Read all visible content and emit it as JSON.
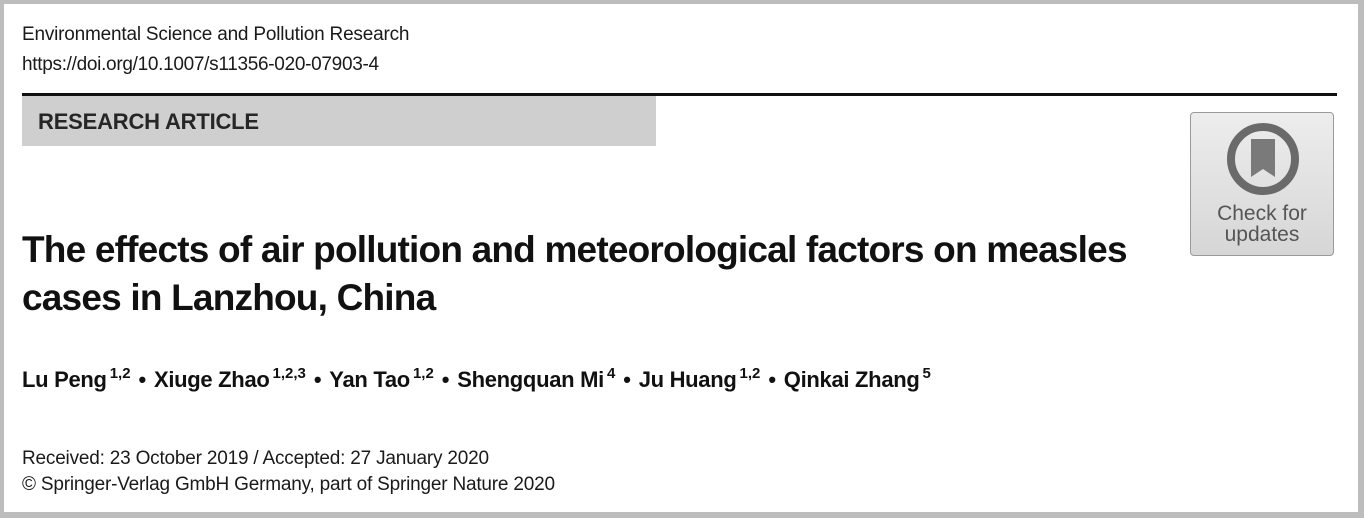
{
  "header": {
    "journal": "Environmental Science and Pollution Research",
    "doi": "https://doi.org/10.1007/s11356-020-07903-4"
  },
  "banner": {
    "label": "RESEARCH ARTICLE"
  },
  "badge": {
    "line1": "Check for",
    "line2": "updates"
  },
  "article": {
    "title": "The effects of air pollution and meteorological factors on measles cases in Lanzhou, China"
  },
  "authors": [
    {
      "name": "Lu Peng",
      "aff": "1,2"
    },
    {
      "name": "Xiuge Zhao",
      "aff": "1,2,3"
    },
    {
      "name": "Yan Tao",
      "aff": "1,2"
    },
    {
      "name": "Shengquan Mi",
      "aff": "4"
    },
    {
      "name": "Ju Huang",
      "aff": "1,2"
    },
    {
      "name": "Qinkai Zhang",
      "aff": "5"
    }
  ],
  "author_separator": "•",
  "dates": "Received: 23 October 2019 / Accepted: 27 January 2020",
  "copyright": "© Springer-Verlag GmbH Germany, part of Springer Nature 2020"
}
